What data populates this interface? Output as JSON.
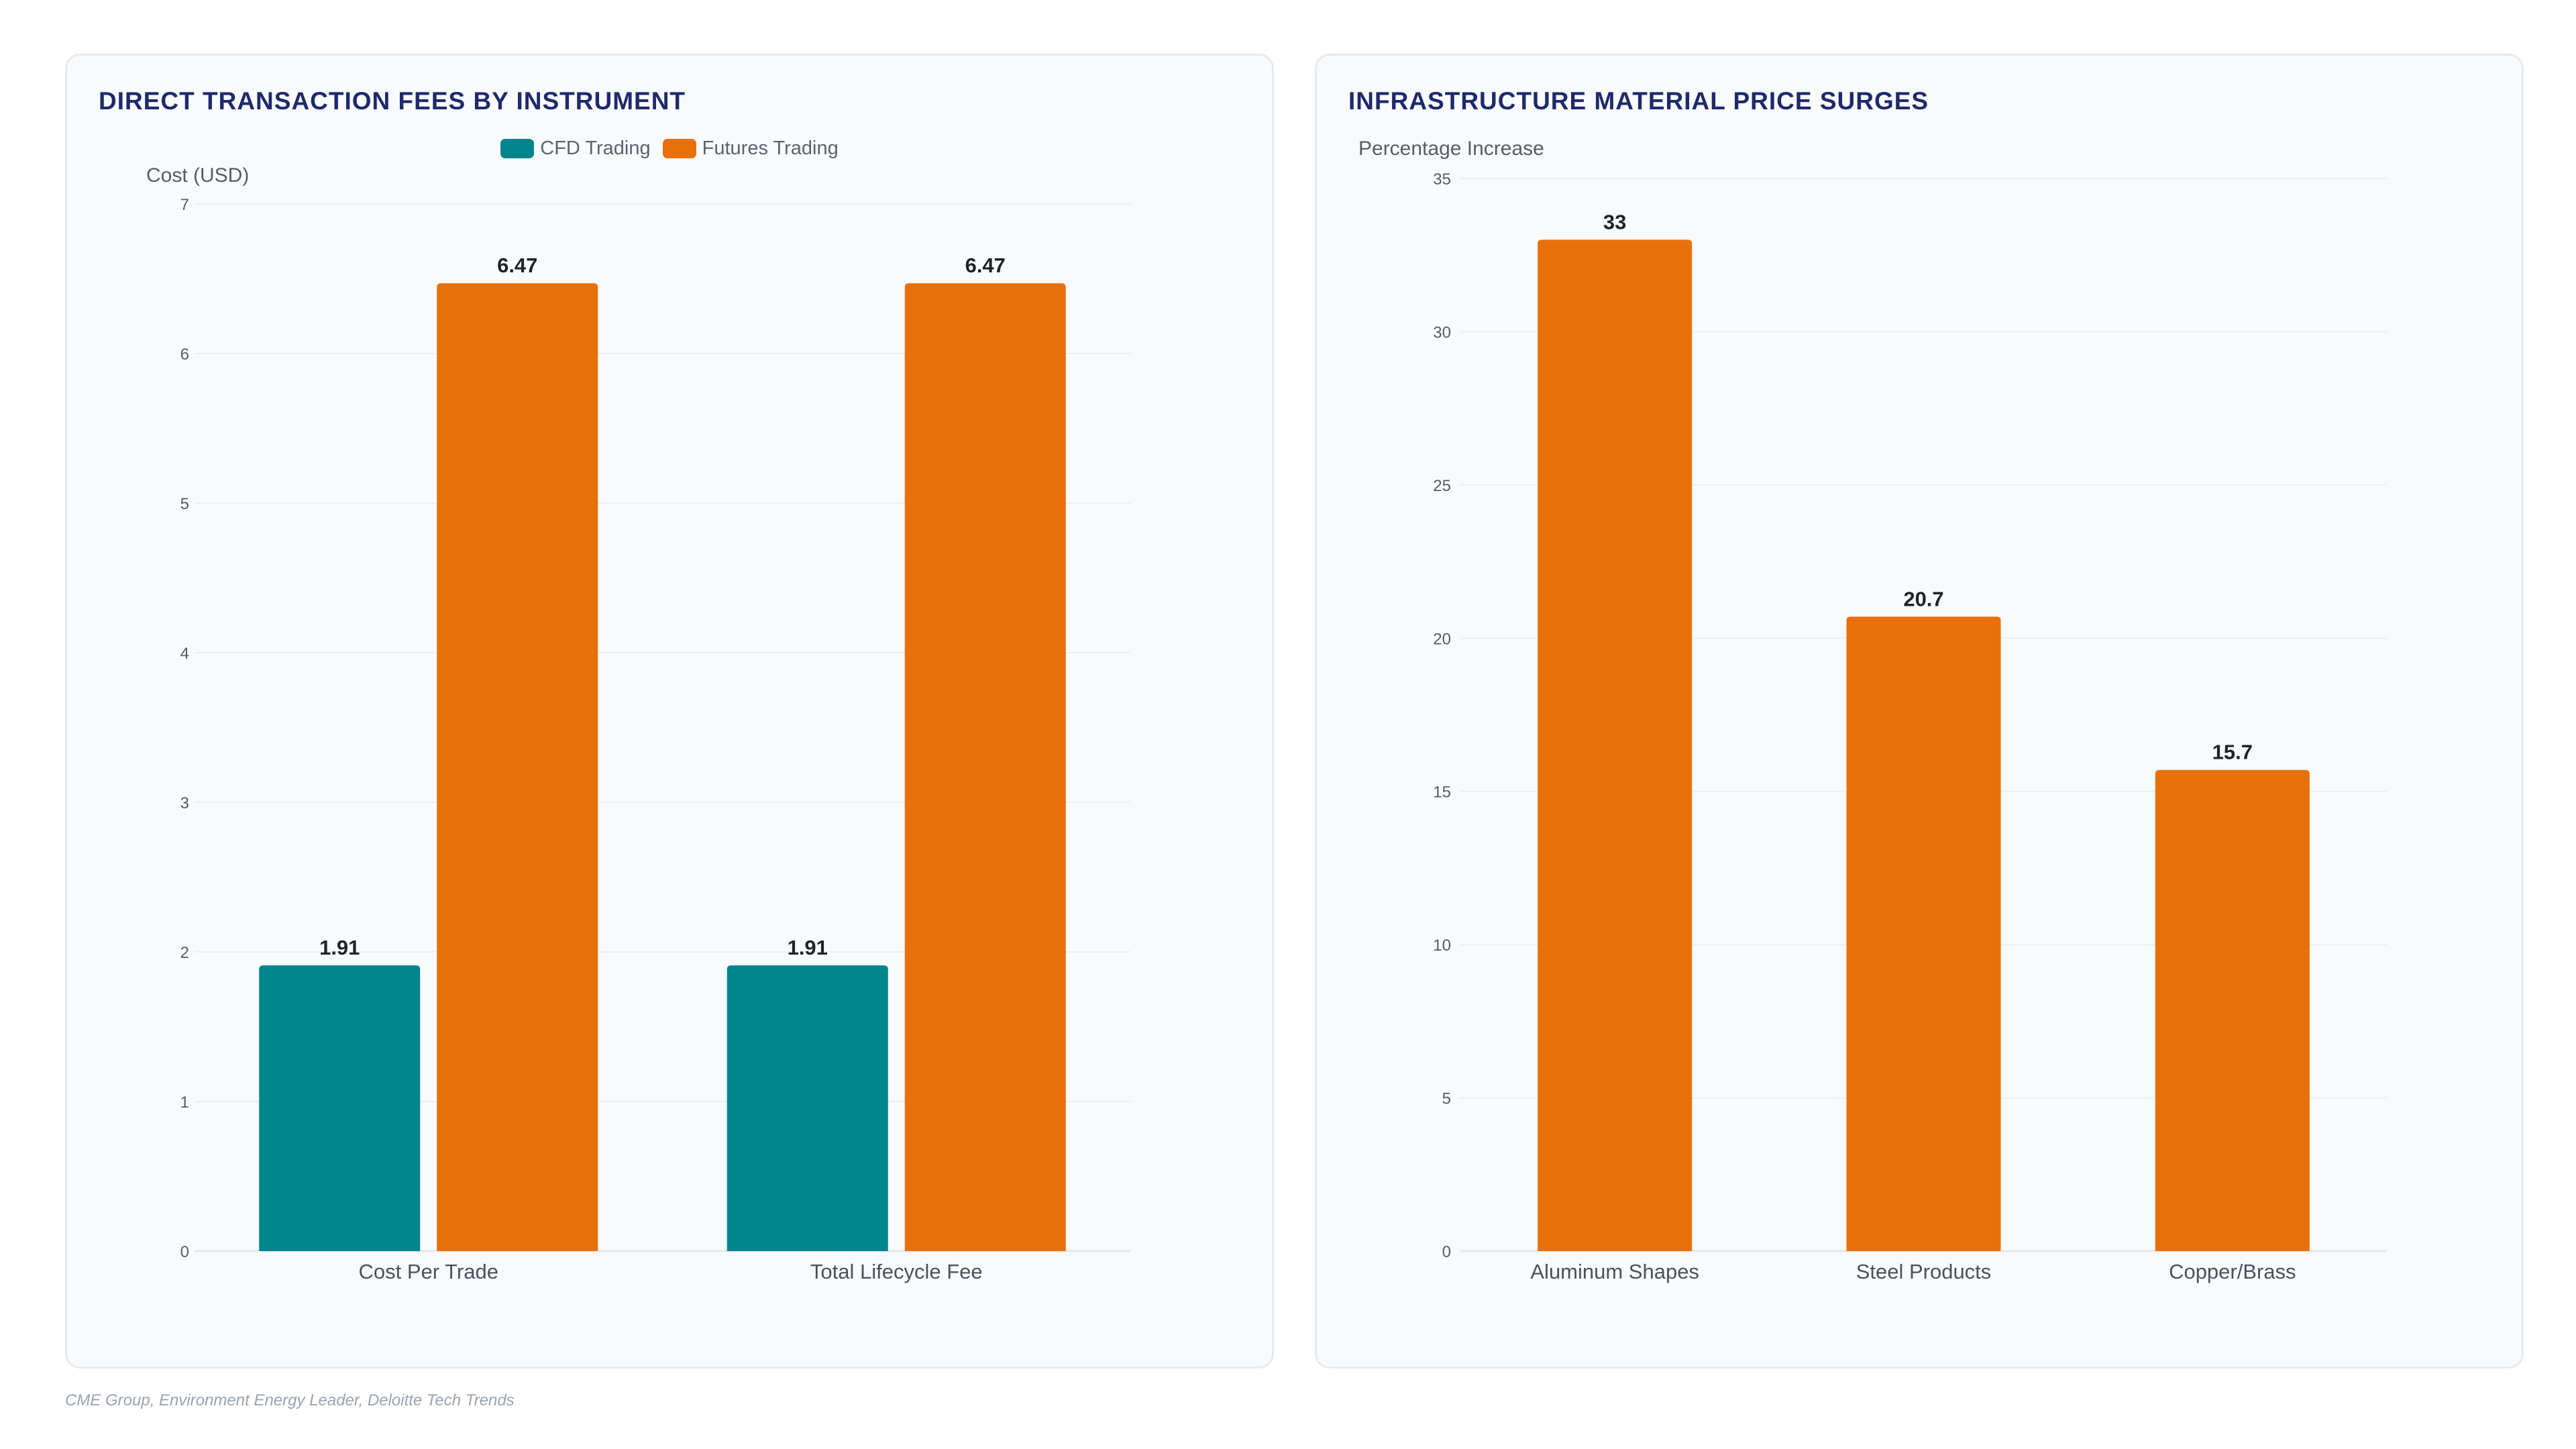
{
  "source_note": "CME Group, Environment Energy Leader, Deloitte Tech Trends",
  "colors": {
    "cfd": "#00848d",
    "futures": "#e8700b",
    "title": "#1f2a6b"
  },
  "chart_data": [
    {
      "type": "bar",
      "title": "DIRECT TRANSACTION FEES BY INSTRUMENT",
      "ylabel": "Cost (USD)",
      "xlabel": "",
      "categories": [
        "Cost Per Trade",
        "Total Lifecycle Fee"
      ],
      "series": [
        {
          "name": "CFD Trading",
          "values": [
            1.91,
            1.91
          ],
          "color": "#00848d"
        },
        {
          "name": "Futures Trading",
          "values": [
            6.47,
            6.47
          ],
          "color": "#e8700b"
        }
      ],
      "ylim": [
        0,
        7
      ],
      "yticks": [
        0,
        1,
        2,
        3,
        4,
        5,
        6,
        7
      ],
      "grid": true,
      "legend": "top"
    },
    {
      "type": "bar",
      "title": "INFRASTRUCTURE MATERIAL PRICE SURGES",
      "ylabel": "Percentage Increase",
      "xlabel": "",
      "categories": [
        "Aluminum Shapes",
        "Steel Products",
        "Copper/Brass"
      ],
      "series": [
        {
          "values": [
            33,
            20.7,
            15.7
          ],
          "color": "#e8700b"
        }
      ],
      "ylim": [
        0,
        35
      ],
      "yticks": [
        0,
        5,
        10,
        15,
        20,
        25,
        30,
        35
      ],
      "grid": true,
      "legend": "none"
    }
  ]
}
